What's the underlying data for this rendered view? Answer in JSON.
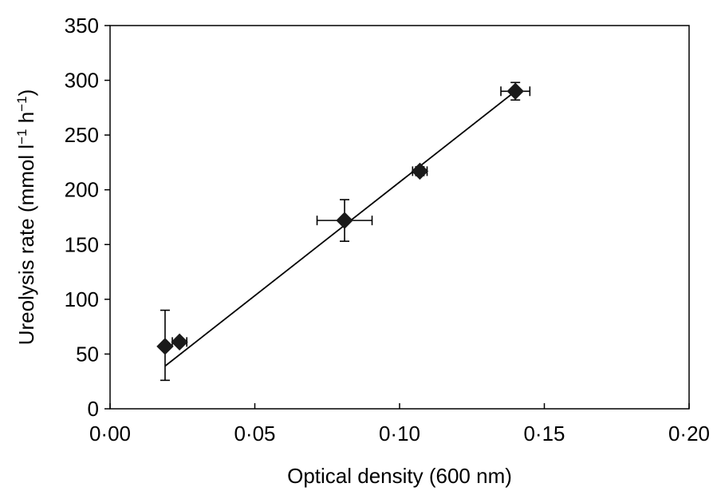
{
  "chart_data": {
    "type": "scatter",
    "xlabel": "Optical density (600 nm)",
    "ylabel": {
      "prefix": "Ureolysis rate (mmol l",
      "sup1": "−1",
      "middle": " h",
      "sup2": "−1",
      "suffix": ")"
    },
    "xlim": [
      0,
      0.2
    ],
    "ylim": [
      0,
      350
    ],
    "x_ticks": [
      0,
      0.05,
      0.1,
      0.15,
      0.2
    ],
    "x_tick_labels": [
      "0·00",
      "0·05",
      "0·10",
      "0·15",
      "0·20"
    ],
    "y_ticks": [
      0,
      50,
      100,
      150,
      200,
      250,
      300,
      350
    ],
    "y_tick_labels": [
      "0",
      "50",
      "100",
      "150",
      "200",
      "250",
      "300",
      "350"
    ],
    "grid": false,
    "marker": "diamond",
    "series": [
      {
        "points": [
          {
            "x": 0.019,
            "y": 57,
            "x_err": 0,
            "y_err_low": 31,
            "y_err_high": 33
          },
          {
            "x": 0.024,
            "y": 61,
            "x_err": 0.0025,
            "y_err_low": 2,
            "y_err_high": 2
          },
          {
            "x": 0.081,
            "y": 172,
            "x_err": 0.0095,
            "y_err_low": 19,
            "y_err_high": 19
          },
          {
            "x": 0.107,
            "y": 217,
            "x_err": 0.0025,
            "y_err_low": 4,
            "y_err_high": 4
          },
          {
            "x": 0.14,
            "y": 290,
            "x_err": 0.005,
            "y_err_low": 8,
            "y_err_high": 8
          }
        ]
      }
    ],
    "fit_line": {
      "x": [
        0.019,
        0.14
      ],
      "y": [
        39,
        290
      ]
    },
    "colors": {
      "marker": "#1a1a1a",
      "line": "#000000",
      "axis": "#000000"
    }
  }
}
